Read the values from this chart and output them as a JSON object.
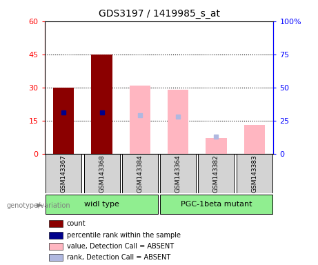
{
  "title": "GDS3197 / 1419985_s_at",
  "samples": [
    "GSM143367",
    "GSM143368",
    "GSM143384",
    "GSM143364",
    "GSM143382",
    "GSM143383"
  ],
  "count_values": [
    30,
    45,
    null,
    null,
    null,
    null
  ],
  "percentile_values": [
    31,
    31,
    null,
    null,
    null,
    null
  ],
  "value_absent": [
    null,
    null,
    31,
    29,
    7,
    13
  ],
  "rank_absent": [
    null,
    null,
    29,
    28,
    13,
    null
  ],
  "left_ylim": [
    0,
    60
  ],
  "right_ylim": [
    0,
    100
  ],
  "left_yticks": [
    0,
    15,
    30,
    45,
    60
  ],
  "right_yticks": [
    0,
    25,
    50,
    75,
    100
  ],
  "right_yticklabels": [
    "0",
    "25",
    "50",
    "75",
    "100%"
  ],
  "count_color": "#8b0000",
  "percentile_color": "#00008b",
  "value_absent_color": "#ffb6c1",
  "rank_absent_color": "#b0b8e0",
  "legend_labels": [
    "count",
    "percentile rank within the sample",
    "value, Detection Call = ABSENT",
    "rank, Detection Call = ABSENT"
  ],
  "legend_colors": [
    "#8b0000",
    "#00008b",
    "#ffb6c1",
    "#b0b8e0"
  ],
  "genotype_label": "genotype/variation",
  "group1_label": "widl type",
  "group2_label": "PGC-1beta mutant",
  "group_color": "#90ee90",
  "sample_box_color": "#d3d3d3"
}
